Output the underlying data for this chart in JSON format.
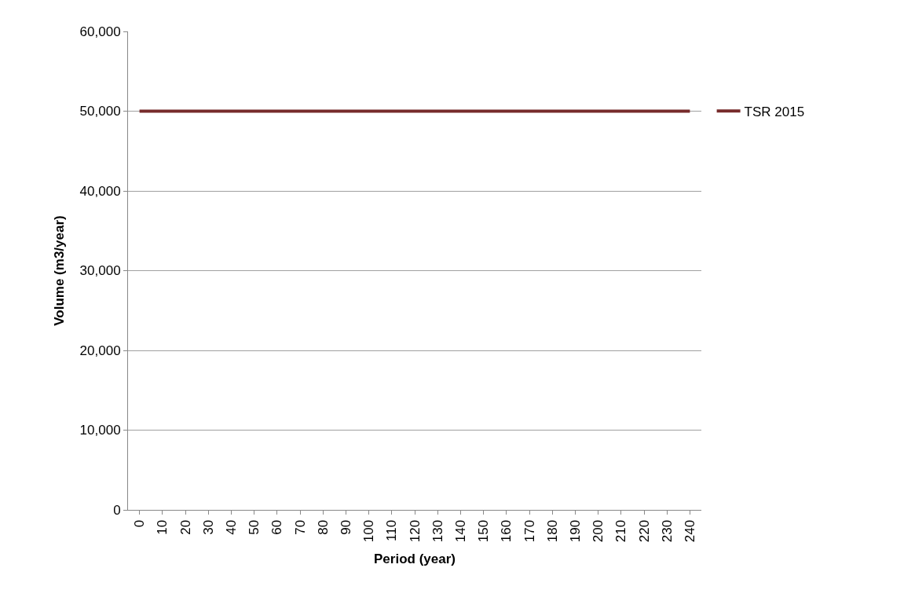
{
  "chart_data": {
    "type": "line",
    "xlabel": "Period (year)",
    "ylabel": "Volume (m3/year)",
    "categories": [
      "0",
      "10",
      "20",
      "30",
      "40",
      "50",
      "60",
      "70",
      "80",
      "90",
      "100",
      "110",
      "120",
      "130",
      "140",
      "150",
      "160",
      "170",
      "180",
      "190",
      "200",
      "210",
      "220",
      "230",
      "240"
    ],
    "series": [
      {
        "name": "TSR 2015",
        "color": "#772b2b",
        "values": [
          50000,
          50000,
          50000,
          50000,
          50000,
          50000,
          50000,
          50000,
          50000,
          50000,
          50000,
          50000,
          50000,
          50000,
          50000,
          50000,
          50000,
          50000,
          50000,
          50000,
          50000,
          50000,
          50000,
          50000,
          50000
        ]
      }
    ],
    "ylim": [
      0,
      60000
    ],
    "yticks": [
      0,
      {
        "value": 10000,
        "label": "10,000"
      },
      {
        "value": 20000,
        "label": "20,000"
      },
      {
        "value": 30000,
        "label": "30,000"
      },
      {
        "value": 40000,
        "label": "40,000"
      },
      {
        "value": 50000,
        "label": "50,000"
      },
      {
        "value": 60000,
        "label": "60,000"
      }
    ],
    "grid": "y",
    "legend": "right",
    "marker": "none",
    "line_style": "solid"
  }
}
